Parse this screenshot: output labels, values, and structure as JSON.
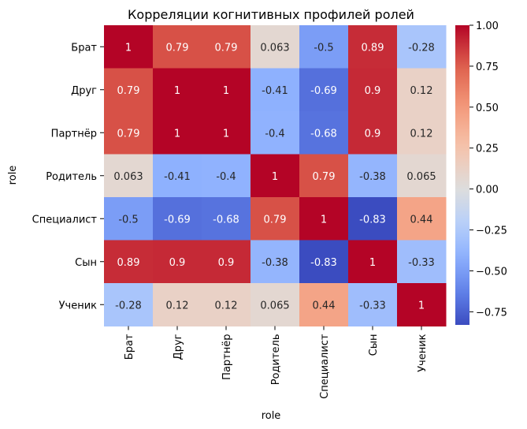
{
  "chart_data": {
    "type": "heatmap",
    "title": "Корреляции когнитивных профилей ролей",
    "xlabel": "role",
    "ylabel": "role",
    "rows": [
      "Брат",
      "Друг",
      "Партнёр",
      "Родитель",
      "Специалист",
      "Сын",
      "Ученик"
    ],
    "columns": [
      "Брат",
      "Друг",
      "Партнёр",
      "Родитель",
      "Специалист",
      "Сын",
      "Ученик"
    ],
    "values": [
      [
        1,
        0.79,
        0.79,
        0.063,
        -0.5,
        0.89,
        -0.28
      ],
      [
        0.79,
        1,
        1,
        -0.41,
        -0.69,
        0.9,
        0.12
      ],
      [
        0.79,
        1,
        1,
        -0.4,
        -0.68,
        0.9,
        0.12
      ],
      [
        0.063,
        -0.41,
        -0.4,
        1,
        0.79,
        -0.38,
        0.065
      ],
      [
        -0.5,
        -0.69,
        -0.68,
        0.79,
        1,
        -0.83,
        0.44
      ],
      [
        0.89,
        0.9,
        0.9,
        -0.38,
        -0.83,
        1,
        -0.33
      ],
      [
        -0.28,
        0.12,
        0.12,
        0.065,
        0.44,
        -0.33,
        1
      ]
    ],
    "colormap": "coolwarm",
    "vmin": -0.83,
    "vmax": 1,
    "colorbar_ticks": [
      "1.00",
      "0.75",
      "0.50",
      "0.25",
      "0.00",
      "−0.25",
      "−0.50",
      "−0.75"
    ],
    "annotations": true
  }
}
